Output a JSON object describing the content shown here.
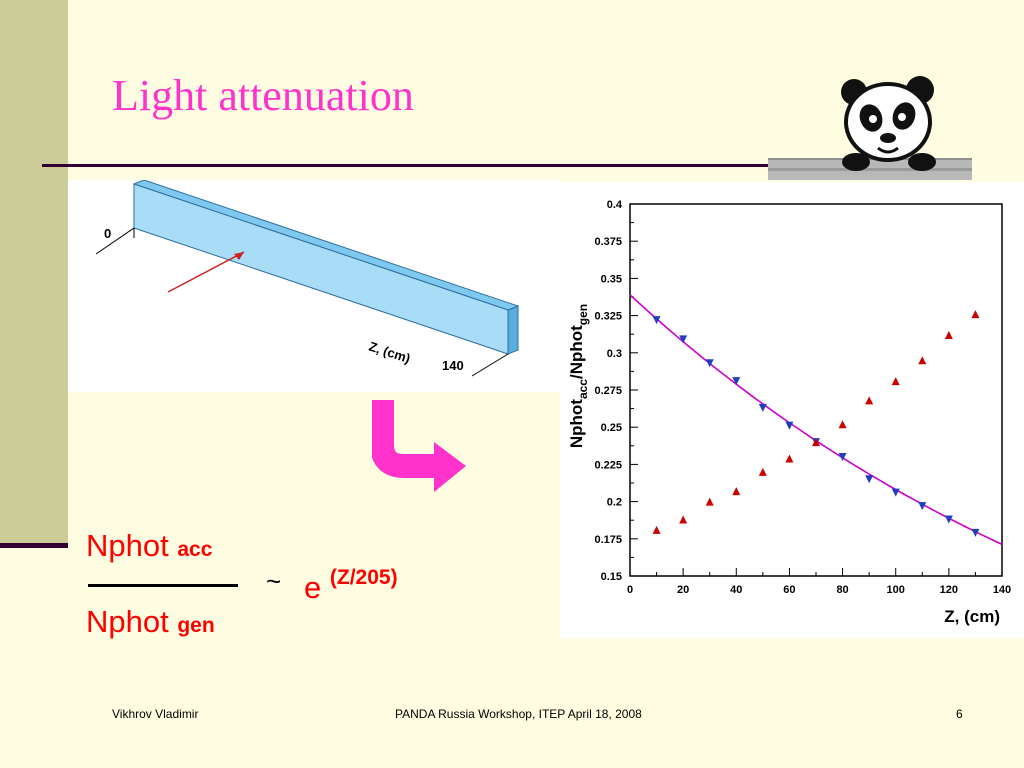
{
  "slide": {
    "title": "Light attenuation",
    "accent_color": "#ff33cc",
    "background_color": "#fffde1",
    "sidebar_color": "#cccc99"
  },
  "scintillator": {
    "label_zero": "0",
    "label_end": "140",
    "axis_label": "Z, (cm)"
  },
  "formula": {
    "numerator_base": "Nphot",
    "numerator_sub": "acc",
    "denominator_base": "Nphot",
    "denominator_sub": "gen",
    "tilde": "~",
    "exp_base": "e",
    "exp_power": "(Z/205)"
  },
  "footer": {
    "author": "Vikhrov Vladimir",
    "event": "PANDA Russia Workshop, ITEP April 18, 2008",
    "page": "6"
  },
  "chart_data": {
    "type": "scatter",
    "xlabel": "Z, (cm)",
    "ylabel_main": "Nphot",
    "ylabel_sub1": "acc",
    "ylabel_mid": "/Nphot",
    "ylabel_sub2": "gen",
    "xlim": [
      0,
      140
    ],
    "ylim": [
      0.15,
      0.4
    ],
    "x_ticks": [
      "0",
      "20",
      "40",
      "60",
      "80",
      "100",
      "120",
      "140"
    ],
    "y_ticks": [
      "0.15",
      "0.175",
      "0.2",
      "0.225",
      "0.25",
      "0.275",
      "0.3",
      "0.325",
      "0.35",
      "0.375",
      "0.4"
    ],
    "grid": false,
    "series": [
      {
        "marker": "triangle-down",
        "color": "#1f3fbf",
        "x": [
          10,
          20,
          30,
          40,
          50,
          60,
          70,
          80,
          90,
          100,
          110,
          120,
          130
        ],
        "y": [
          0.322,
          0.309,
          0.293,
          0.281,
          0.263,
          0.251,
          0.24,
          0.23,
          0.215,
          0.206,
          0.197,
          0.188,
          0.179
        ]
      },
      {
        "marker": "triangle-up",
        "color": "#cc0000",
        "x": [
          10,
          20,
          30,
          40,
          50,
          60,
          70,
          80,
          90,
          100,
          110,
          120,
          130
        ],
        "y": [
          0.181,
          0.188,
          0.2,
          0.207,
          0.22,
          0.229,
          0.24,
          0.252,
          0.268,
          0.281,
          0.295,
          0.312,
          0.326
        ]
      }
    ],
    "fit": {
      "color": "#cc00cc",
      "amplitude": 0.339,
      "length_cm": 205
    }
  }
}
